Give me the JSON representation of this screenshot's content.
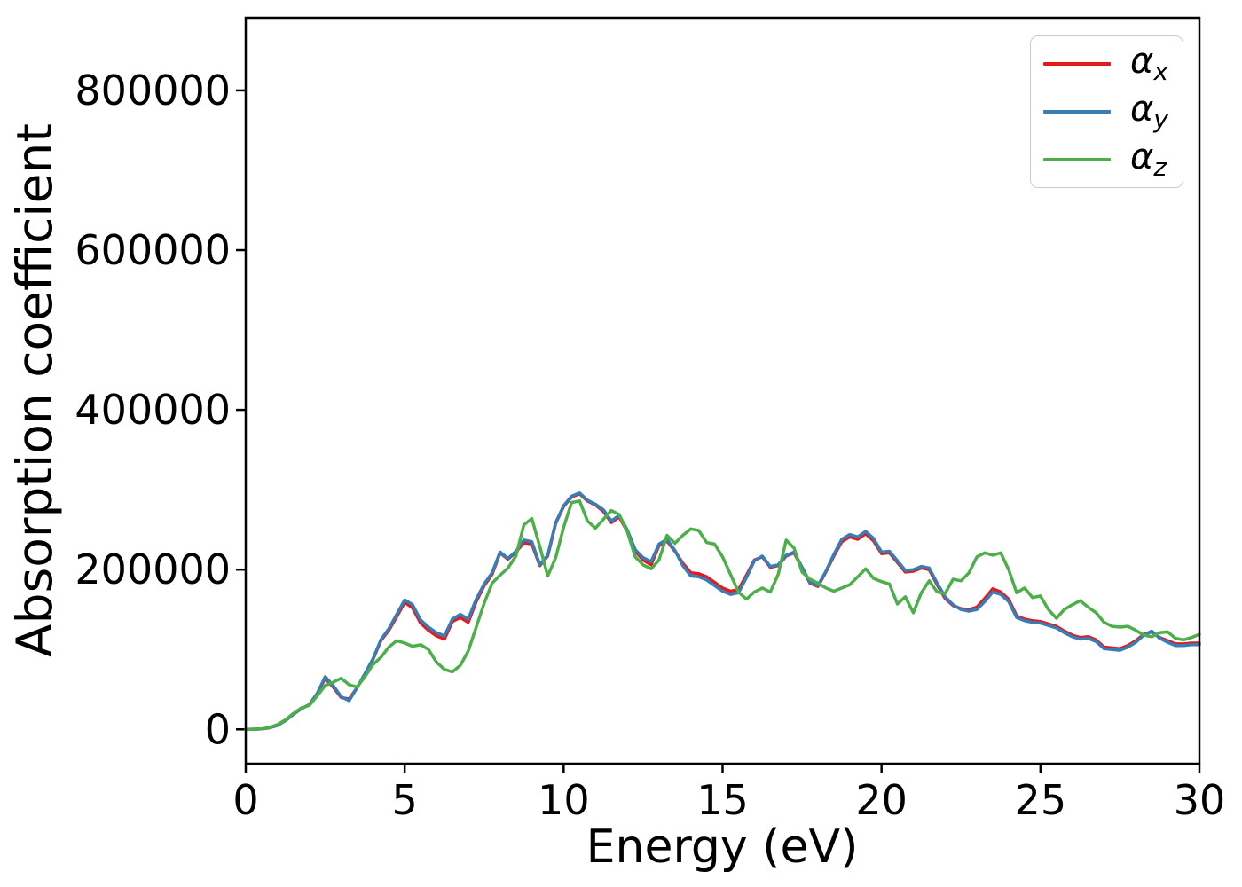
{
  "chart_data": {
    "type": "line",
    "title": "",
    "xlabel": "Energy (eV)",
    "ylabel": "Absorption coefficient",
    "xlim": [
      0,
      30
    ],
    "ylim": [
      -43000,
      891000
    ],
    "x_ticks": [
      0,
      5,
      10,
      15,
      20,
      25,
      30
    ],
    "y_ticks": [
      0,
      200000,
      400000,
      600000,
      800000
    ],
    "grid": false,
    "legend_position": "upper right",
    "axis_color": "#000000",
    "x": [
      0,
      0.25,
      0.5,
      0.75,
      1,
      1.25,
      1.5,
      1.75,
      2,
      2.25,
      2.5,
      2.75,
      3,
      3.25,
      3.5,
      3.75,
      4,
      4.25,
      4.5,
      4.75,
      5,
      5.25,
      5.5,
      5.75,
      6,
      6.25,
      6.5,
      6.75,
      7,
      7.25,
      7.5,
      7.75,
      8,
      8.25,
      8.5,
      8.75,
      9,
      9.25,
      9.5,
      9.75,
      10,
      10.25,
      10.5,
      10.75,
      11,
      11.25,
      11.5,
      11.75,
      12,
      12.25,
      12.5,
      12.75,
      13,
      13.25,
      13.5,
      13.75,
      14,
      14.25,
      14.5,
      14.75,
      15,
      15.25,
      15.5,
      15.75,
      16,
      16.25,
      16.5,
      16.75,
      17,
      17.25,
      17.5,
      17.75,
      18,
      18.25,
      18.5,
      18.75,
      19,
      19.25,
      19.5,
      19.75,
      20,
      20.25,
      20.5,
      20.75,
      21,
      21.25,
      21.5,
      21.75,
      22,
      22.25,
      22.5,
      22.75,
      23,
      23.25,
      23.5,
      23.75,
      24,
      24.25,
      24.5,
      24.75,
      25,
      25.25,
      25.5,
      25.75,
      26,
      26.25,
      26.5,
      26.75,
      27,
      27.25,
      27.5,
      27.75,
      28,
      28.25,
      28.5,
      28.75,
      29,
      29.25,
      29.5,
      29.75,
      30
    ],
    "series": [
      {
        "name": "alpha_x",
        "symbol": "α",
        "subscript": "x",
        "color": "#e41a1c",
        "values": [
          0,
          200,
          500,
          2000,
          5000,
          11000,
          19000,
          26000,
          31000,
          45000,
          64000,
          53000,
          40000,
          38000,
          52000,
          69000,
          87000,
          111000,
          124000,
          141000,
          159000,
          152000,
          133000,
          124000,
          117000,
          113000,
          135000,
          140000,
          134000,
          160000,
          180000,
          194000,
          221000,
          213000,
          222000,
          234000,
          232000,
          205000,
          217000,
          258000,
          279000,
          291000,
          295000,
          286000,
          281000,
          273000,
          259000,
          266000,
          248000,
          223000,
          212000,
          206000,
          230000,
          236000,
          223000,
          208000,
          196000,
          195000,
          191000,
          184000,
          177000,
          173000,
          175000,
          193000,
          212000,
          216000,
          203000,
          205000,
          217000,
          221000,
          202000,
          183000,
          179000,
          197000,
          217000,
          235000,
          241000,
          238000,
          245000,
          236000,
          220000,
          221000,
          209000,
          197000,
          198000,
          202000,
          200000,
          181000,
          164000,
          155000,
          151000,
          150000,
          153000,
          164000,
          176000,
          172000,
          163000,
          142000,
          138000,
          136000,
          135000,
          132000,
          129000,
          123000,
          118000,
          115000,
          116000,
          112000,
          103000,
          102000,
          101000,
          105000,
          111000,
          119000,
          122000,
          115000,
          111000,
          107000,
          107000,
          108000,
          108000
        ]
      },
      {
        "name": "alpha_y",
        "symbol": "α",
        "subscript": "y",
        "color": "#377eb8",
        "values": [
          0,
          200,
          500,
          2000,
          5000,
          11000,
          19000,
          26000,
          31000,
          45000,
          66000,
          55000,
          41000,
          36000,
          52000,
          70000,
          88000,
          112000,
          126000,
          144000,
          162000,
          156000,
          137000,
          128000,
          121000,
          117000,
          138000,
          144000,
          138000,
          163000,
          182000,
          196000,
          222000,
          214000,
          223000,
          237000,
          235000,
          206000,
          218000,
          259000,
          280000,
          292000,
          296000,
          287000,
          282000,
          275000,
          261000,
          268000,
          250000,
          225000,
          215000,
          210000,
          232000,
          238000,
          224000,
          205000,
          192000,
          191000,
          187000,
          180000,
          173000,
          169000,
          171000,
          190000,
          211000,
          217000,
          204000,
          206000,
          218000,
          222000,
          203000,
          184000,
          180000,
          198000,
          219000,
          238000,
          244000,
          241000,
          248000,
          239000,
          222000,
          223000,
          211000,
          199000,
          200000,
          204000,
          202000,
          183000,
          166000,
          156000,
          150000,
          148000,
          150000,
          160000,
          172000,
          169000,
          160000,
          140000,
          136000,
          134000,
          133000,
          130000,
          127000,
          121000,
          116000,
          113000,
          114000,
          110000,
          101000,
          100000,
          99000,
          103000,
          109000,
          118000,
          123000,
          114000,
          109000,
          105000,
          105000,
          106000,
          106000
        ]
      },
      {
        "name": "alpha_z",
        "symbol": "α",
        "subscript": "z",
        "color": "#4daf4a",
        "values": [
          0,
          200,
          500,
          2500,
          6000,
          12000,
          20000,
          27000,
          30000,
          42000,
          55000,
          59000,
          64000,
          56000,
          53000,
          66000,
          81000,
          90000,
          103000,
          111000,
          108000,
          104000,
          106000,
          100000,
          84000,
          75000,
          72000,
          80000,
          98000,
          128000,
          158000,
          183000,
          193000,
          202000,
          217000,
          256000,
          264000,
          229000,
          192000,
          215000,
          253000,
          284000,
          286000,
          261000,
          252000,
          263000,
          274000,
          269000,
          248000,
          216000,
          206000,
          201000,
          212000,
          243000,
          233000,
          243000,
          251000,
          249000,
          234000,
          232000,
          216000,
          194000,
          172000,
          163000,
          172000,
          177000,
          172000,
          194000,
          237000,
          227000,
          197000,
          188000,
          183000,
          177000,
          173000,
          177000,
          181000,
          191000,
          201000,
          189000,
          185000,
          182000,
          157000,
          166000,
          146000,
          171000,
          186000,
          172000,
          170000,
          188000,
          186000,
          196000,
          216000,
          221000,
          218000,
          221000,
          200000,
          171000,
          177000,
          165000,
          167000,
          150000,
          139000,
          150000,
          156000,
          161000,
          153000,
          146000,
          134000,
          129000,
          128000,
          129000,
          124000,
          118000,
          116000,
          121000,
          122000,
          114000,
          112000,
          115000,
          119000
        ]
      }
    ]
  }
}
